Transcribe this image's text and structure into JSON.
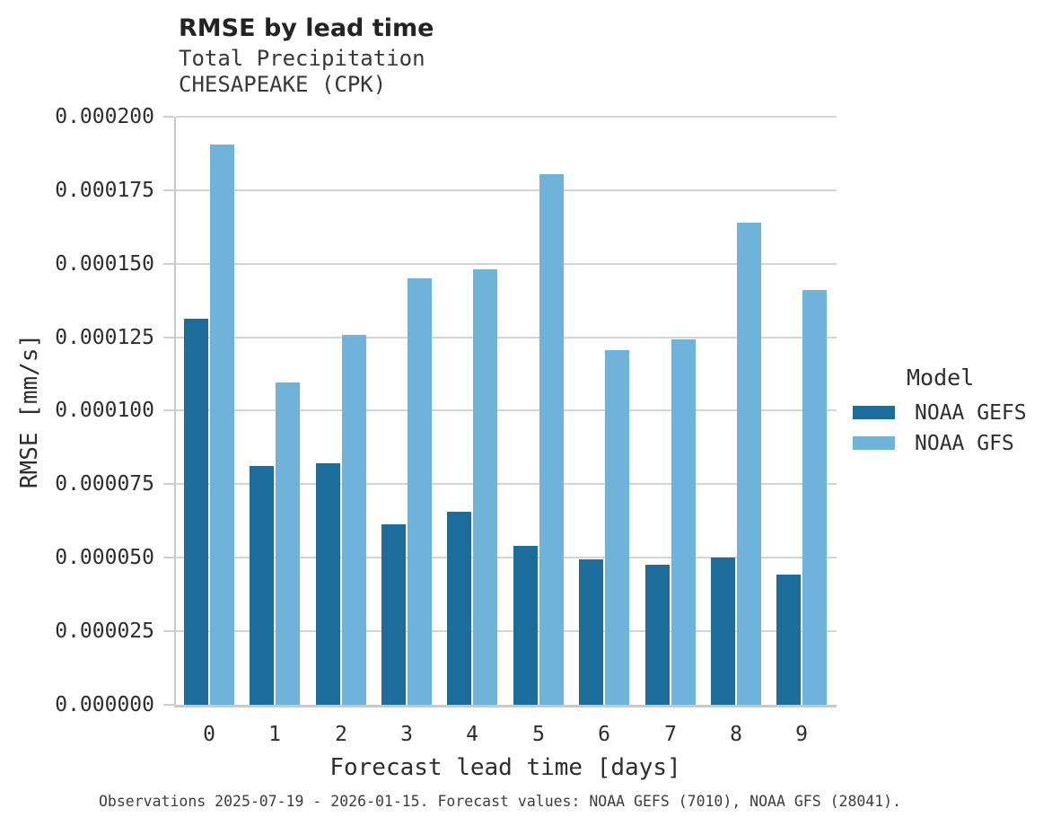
{
  "header": {
    "title": "RMSE by lead time",
    "subtitle_line1": "Total Precipitation",
    "subtitle_line2": "CHESAPEAKE (CPK)"
  },
  "legend": {
    "title": "Model",
    "items": [
      {
        "label": "NOAA GEFS",
        "color": "#1c6d9c"
      },
      {
        "label": "NOAA GFS",
        "color": "#6fb2da"
      }
    ]
  },
  "footer": {
    "text": "Observations 2025-07-19 - 2026-01-15. Forecast values: NOAA GEFS (7010), NOAA GFS (28041)."
  },
  "colors": {
    "background": "#ffffff",
    "grid": "#d4d4d4",
    "spine": "#c9c9c9",
    "dark_blue": "#1c6d9c",
    "light_blue": "#6fb2da"
  },
  "chart_data": {
    "type": "bar",
    "title": "RMSE by lead time",
    "subtitle": [
      "Total Precipitation",
      "CHESAPEAKE (CPK)"
    ],
    "categories": [
      "0",
      "1",
      "2",
      "3",
      "4",
      "5",
      "6",
      "7",
      "8",
      "9"
    ],
    "series": [
      {
        "name": "NOAA GEFS",
        "color": "#1c6d9c",
        "values": [
          0.0001313,
          8.12e-05,
          8.22e-05,
          6.15e-05,
          6.56e-05,
          5.41e-05,
          4.96e-05,
          4.75e-05,
          5e-05,
          4.43e-05
        ]
      },
      {
        "name": "NOAA GFS",
        "color": "#6fb2da",
        "values": [
          0.0001905,
          0.0001096,
          0.0001257,
          0.000145,
          0.000148,
          0.0001805,
          0.0001207,
          0.0001242,
          0.0001641,
          0.000141
        ]
      }
    ],
    "xlabel": "Forecast lead time [days]",
    "ylabel": "RMSE [mm/s]",
    "ylim": [
      0,
      0.0002
    ],
    "ytick_step": 2.5e-05,
    "ytick_decimals": 6,
    "grid": "horizontal",
    "legend_title": "Model",
    "legend_position": "right"
  }
}
